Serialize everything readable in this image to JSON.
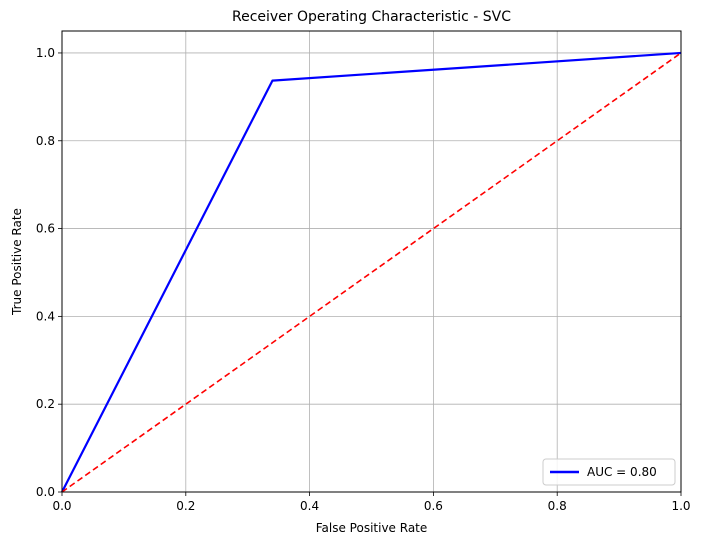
{
  "chart_data": {
    "type": "line",
    "title": "Receiver Operating Characteristic - SVC",
    "xlabel": "False Positive Rate",
    "ylabel": "True Positive Rate",
    "xlim": [
      0.0,
      1.0
    ],
    "ylim": [
      0.0,
      1.05
    ],
    "x_ticks": [
      "0.0",
      "0.2",
      "0.4",
      "0.6",
      "0.8",
      "1.0"
    ],
    "y_ticks": [
      "0.0",
      "0.2",
      "0.4",
      "0.6",
      "0.8",
      "1.0"
    ],
    "grid": true,
    "legend_position": "lower-right",
    "series": [
      {
        "name": "AUC = 0.80",
        "color": "#0000ff",
        "style": "solid",
        "x": [
          0.0,
          0.34,
          1.0
        ],
        "y": [
          0.0,
          0.937,
          1.0
        ]
      },
      {
        "color": "#ff0000",
        "style": "dashed",
        "x": [
          0.0,
          1.0
        ],
        "y": [
          0.0,
          1.0
        ]
      }
    ]
  }
}
